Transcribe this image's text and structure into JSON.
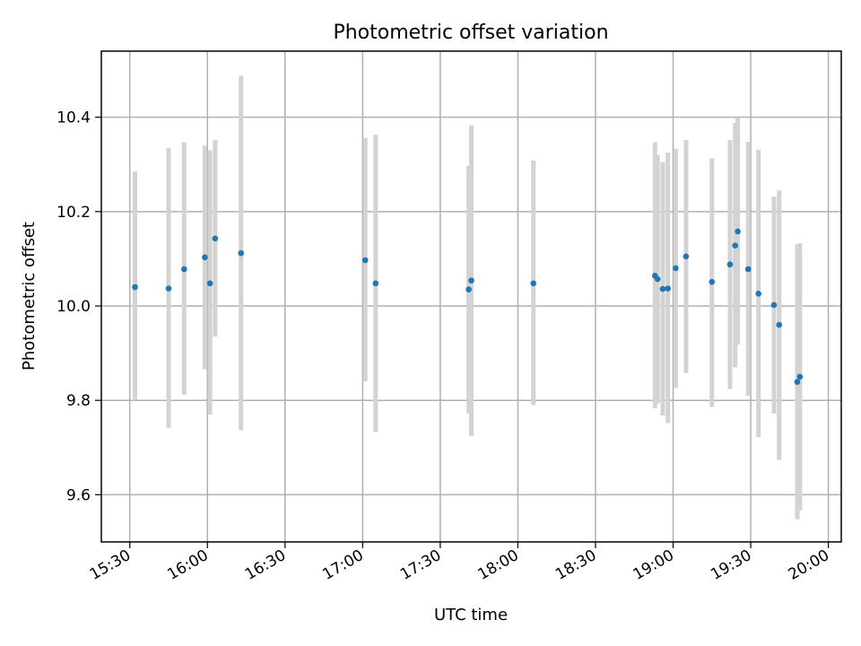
{
  "chart_data": {
    "type": "scatter",
    "title": "Photometric offset variation",
    "xlabel": "UTC time",
    "ylabel": "Photometric offset",
    "x_unit": "time of day (HH:MM)",
    "xlim": [
      "15:19",
      "20:05"
    ],
    "ylim": [
      9.5,
      10.54
    ],
    "x_ticks": [
      "15:30",
      "16:00",
      "16:30",
      "17:00",
      "17:30",
      "18:00",
      "18:30",
      "19:00",
      "19:30",
      "20:00"
    ],
    "y_ticks": [
      9.6,
      9.8,
      10.0,
      10.2,
      10.4
    ],
    "y_tick_labels": [
      "9.6",
      "9.8",
      "10.0",
      "10.2",
      "10.4"
    ],
    "grid": true,
    "legend": "none",
    "colors": {
      "point": "#1f77b4",
      "errorbar": "#d3d3d3"
    },
    "series": [
      {
        "points": [
          {
            "x": "15:32",
            "y": 10.04,
            "ylow": 9.8,
            "yhigh": 10.285
          },
          {
            "x": "15:45",
            "y": 10.037,
            "ylow": 9.742,
            "yhigh": 10.335
          },
          {
            "x": "15:51",
            "y": 10.078,
            "ylow": 9.812,
            "yhigh": 10.347
          },
          {
            "x": "15:59",
            "y": 10.103,
            "ylow": 9.866,
            "yhigh": 10.34
          },
          {
            "x": "16:01",
            "y": 10.048,
            "ylow": 9.77,
            "yhigh": 10.33
          },
          {
            "x": "16:03",
            "y": 10.143,
            "ylow": 9.935,
            "yhigh": 10.352
          },
          {
            "x": "16:13",
            "y": 10.112,
            "ylow": 9.737,
            "yhigh": 10.488
          },
          {
            "x": "17:01",
            "y": 10.097,
            "ylow": 9.84,
            "yhigh": 10.356
          },
          {
            "x": "17:05",
            "y": 10.048,
            "ylow": 9.733,
            "yhigh": 10.363
          },
          {
            "x": "17:41",
            "y": 10.035,
            "ylow": 9.772,
            "yhigh": 10.297
          },
          {
            "x": "17:42",
            "y": 10.054,
            "ylow": 9.724,
            "yhigh": 10.383
          },
          {
            "x": "18:06",
            "y": 10.048,
            "ylow": 9.79,
            "yhigh": 10.308
          },
          {
            "x": "18:53",
            "y": 10.064,
            "ylow": 9.783,
            "yhigh": 10.347
          },
          {
            "x": "18:54",
            "y": 10.057,
            "ylow": 9.793,
            "yhigh": 10.32
          },
          {
            "x": "18:56",
            "y": 10.036,
            "ylow": 9.768,
            "yhigh": 10.305
          },
          {
            "x": "18:58",
            "y": 10.037,
            "ylow": 9.752,
            "yhigh": 10.325
          },
          {
            "x": "19:01",
            "y": 10.08,
            "ylow": 9.826,
            "yhigh": 10.333
          },
          {
            "x": "19:05",
            "y": 10.105,
            "ylow": 9.858,
            "yhigh": 10.352
          },
          {
            "x": "19:15",
            "y": 10.051,
            "ylow": 9.786,
            "yhigh": 10.313
          },
          {
            "x": "19:22",
            "y": 10.088,
            "ylow": 9.824,
            "yhigh": 10.352
          },
          {
            "x": "19:24",
            "y": 10.128,
            "ylow": 9.87,
            "yhigh": 10.388
          },
          {
            "x": "19:25",
            "y": 10.158,
            "ylow": 9.918,
            "yhigh": 10.398
          },
          {
            "x": "19:29",
            "y": 10.078,
            "ylow": 9.81,
            "yhigh": 10.348
          },
          {
            "x": "19:33",
            "y": 10.026,
            "ylow": 9.722,
            "yhigh": 10.331
          },
          {
            "x": "19:39",
            "y": 10.002,
            "ylow": 9.772,
            "yhigh": 10.232
          },
          {
            "x": "19:41",
            "y": 9.96,
            "ylow": 9.674,
            "yhigh": 10.245
          },
          {
            "x": "19:48",
            "y": 9.839,
            "ylow": 9.548,
            "yhigh": 10.131
          },
          {
            "x": "19:49",
            "y": 9.85,
            "ylow": 9.567,
            "yhigh": 10.133
          }
        ]
      }
    ]
  }
}
